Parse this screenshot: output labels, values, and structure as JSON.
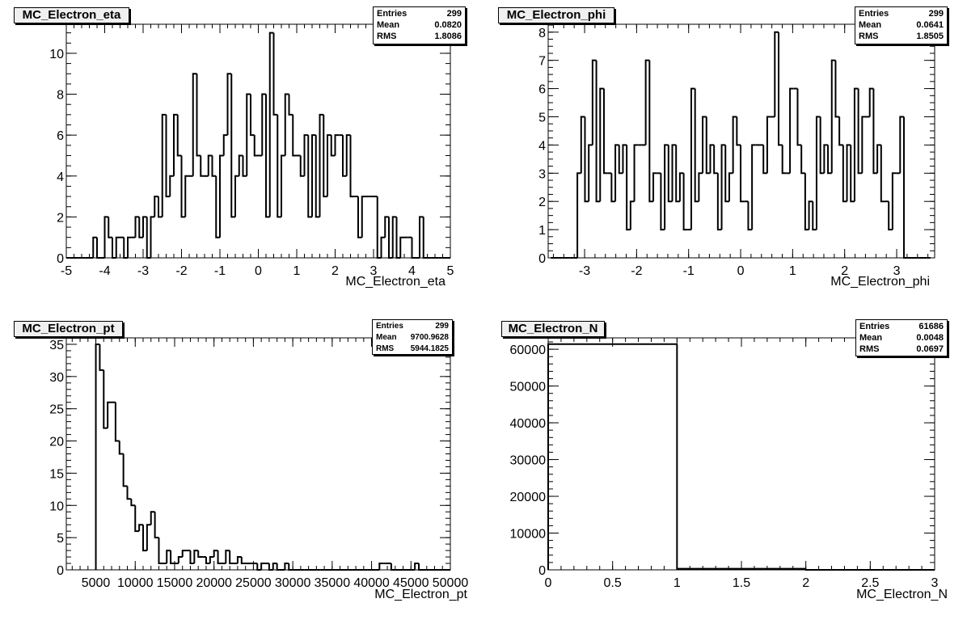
{
  "chart_data": [
    {
      "type": "bar",
      "title": "MC_Electron_eta",
      "xlabel": "MC_Electron_eta",
      "ylabel": "",
      "stats": {
        "entries_label": "Entries",
        "entries": "299",
        "mean_label": "Mean",
        "mean": "0.0820",
        "rms_label": "RMS",
        "rms": "1.8086"
      },
      "histogram": {
        "bin_low": -5,
        "bin_width": 0.1
      },
      "values": [
        0,
        0,
        0,
        0,
        0,
        0,
        0,
        1,
        0,
        0,
        2,
        1,
        0,
        1,
        1,
        0,
        1,
        1,
        2,
        1,
        2,
        0,
        2,
        3,
        2,
        7,
        3,
        4,
        7,
        5,
        2,
        4,
        4,
        9,
        5,
        4,
        4,
        5,
        4,
        1,
        5,
        6,
        9,
        2,
        4,
        5,
        4,
        8,
        6,
        5,
        5,
        8,
        2,
        11,
        7,
        2,
        5,
        8,
        7,
        5,
        5,
        4,
        6,
        2,
        6,
        2,
        7,
        3,
        6,
        5,
        6,
        6,
        4,
        6,
        3,
        3,
        1,
        3,
        3,
        3,
        3,
        0,
        1,
        2,
        0,
        2,
        0,
        1,
        1,
        1,
        0,
        0,
        2,
        0,
        0,
        0,
        0,
        0,
        0,
        0
      ],
      "xlim": [
        -5,
        5
      ],
      "ylim": [
        0,
        11.42
      ],
      "xticks": [
        -5,
        -4,
        -3,
        -2,
        -1,
        0,
        1,
        2,
        3,
        4,
        5
      ],
      "xtick_labels": [
        "-5",
        "-4",
        "-3",
        "-2",
        "-1",
        "0",
        "1",
        "2",
        "3",
        "4",
        "5"
      ],
      "yticks": [
        0,
        2,
        4,
        6,
        8,
        10
      ],
      "ytick_labels": [
        "0",
        "2",
        "4",
        "6",
        "8",
        "10"
      ],
      "grid": false,
      "legend": "top-right"
    },
    {
      "type": "bar",
      "title": "MC_Electron_phi",
      "xlabel": "MC_Electron_phi",
      "ylabel": "",
      "stats": {
        "entries_label": "Entries",
        "entries": "299",
        "mean_label": "Mean",
        "mean": "0.0641",
        "rms_label": "RMS",
        "rms": "1.8505"
      },
      "histogram": {
        "bin_low": -3.65,
        "bin_width": 0.073
      },
      "values": [
        0,
        0,
        0,
        0,
        0,
        0,
        0,
        3,
        5,
        2,
        4,
        7,
        2,
        6,
        3,
        3,
        2,
        4,
        3,
        4,
        1,
        2,
        4,
        4,
        4,
        7,
        2,
        3,
        3,
        1,
        4,
        2,
        4,
        2,
        3,
        1,
        1,
        6,
        2,
        3,
        5,
        3,
        4,
        3,
        1,
        4,
        2,
        3,
        5,
        4,
        2,
        2,
        1,
        4,
        4,
        4,
        3,
        5,
        5,
        8,
        4,
        3,
        3,
        6,
        6,
        4,
        3,
        1,
        2,
        1,
        5,
        3,
        4,
        3,
        7,
        5,
        4,
        2,
        4,
        2,
        6,
        3,
        5,
        5,
        6,
        3,
        4,
        2,
        2,
        1,
        3,
        3,
        5,
        0,
        0,
        0,
        0,
        0,
        0,
        0
      ],
      "xlim": [
        -3.7,
        3.73
      ],
      "ylim": [
        0,
        8.28
      ],
      "xticks": [
        -3,
        -2,
        -1,
        0,
        1,
        2,
        3
      ],
      "xtick_labels": [
        "-3",
        "-2",
        "-1",
        "0",
        "1",
        "2",
        "3"
      ],
      "yticks": [
        0,
        1,
        2,
        3,
        4,
        5,
        6,
        7,
        8
      ],
      "ytick_labels": [
        "0",
        "1",
        "2",
        "3",
        "4",
        "5",
        "6",
        "7",
        "8"
      ],
      "grid": false,
      "legend": "top-right"
    },
    {
      "type": "bar",
      "title": "MC_Electron_pt",
      "xlabel": "MC_Electron_pt",
      "ylabel": "",
      "stats": {
        "entries_label": "Entries",
        "entries": "299",
        "mean_label": "Mean",
        "mean": "9700.9628",
        "rms_label": "RMS",
        "rms": "5944.1825"
      },
      "histogram": {
        "bin_low": 5000,
        "bin_width": 500
      },
      "values": [
        35,
        31,
        22,
        26,
        26,
        20,
        18,
        13,
        11,
        10,
        6,
        7,
        3,
        7,
        9,
        5,
        1,
        1,
        3,
        1,
        1,
        2,
        3,
        3,
        1,
        3,
        2,
        2,
        1,
        2,
        3,
        1,
        1,
        3,
        1,
        1,
        2,
        1,
        1,
        1,
        1,
        0,
        1,
        1,
        0,
        1,
        0,
        0,
        1,
        0,
        0,
        0,
        0,
        0,
        0,
        0,
        0,
        0,
        0,
        0,
        0,
        0,
        0,
        0,
        0,
        0,
        0,
        0,
        0,
        0,
        0,
        0,
        1,
        1,
        1,
        0,
        0,
        0,
        0,
        0,
        0,
        1,
        0,
        0,
        0,
        0,
        0,
        0,
        0,
        0
      ],
      "xlim": [
        1250,
        50000
      ],
      "ylim": [
        0,
        36
      ],
      "xticks": [
        5000,
        10000,
        15000,
        20000,
        25000,
        30000,
        35000,
        40000,
        45000,
        50000
      ],
      "xtick_labels": [
        "5000",
        "10000",
        "15000",
        "20000",
        "25000",
        "30000",
        "35000",
        "40000",
        "45000",
        "50000"
      ],
      "yticks": [
        0,
        5,
        10,
        15,
        20,
        25,
        30,
        35
      ],
      "ytick_labels": [
        "0",
        "5",
        "10",
        "15",
        "20",
        "25",
        "30",
        "35"
      ],
      "grid": false,
      "legend": "top-right"
    },
    {
      "type": "bar",
      "title": "MC_Electron_N",
      "xlabel": "MC_Electron_N",
      "ylabel": "",
      "stats": {
        "entries_label": "Entries",
        "entries": "61686",
        "mean_label": "Mean",
        "mean": "0.0048",
        "rms_label": "RMS",
        "rms": "0.0697"
      },
      "histogram": {
        "bin_low": 0,
        "bin_width": 1
      },
      "values": [
        61388,
        297,
        1
      ],
      "xlim": [
        0,
        3
      ],
      "ylim": [
        0,
        63100
      ],
      "xticks": [
        0,
        0.5,
        1,
        1.5,
        2,
        2.5,
        3
      ],
      "xtick_labels": [
        "0",
        "0.5",
        "1",
        "1.5",
        "2",
        "2.5",
        "3"
      ],
      "yticks": [
        0,
        10000,
        20000,
        30000,
        40000,
        50000,
        60000
      ],
      "ytick_labels": [
        "0",
        "10000",
        "20000",
        "30000",
        "40000",
        "50000",
        "60000"
      ],
      "grid": false,
      "legend": "top-right"
    }
  ]
}
